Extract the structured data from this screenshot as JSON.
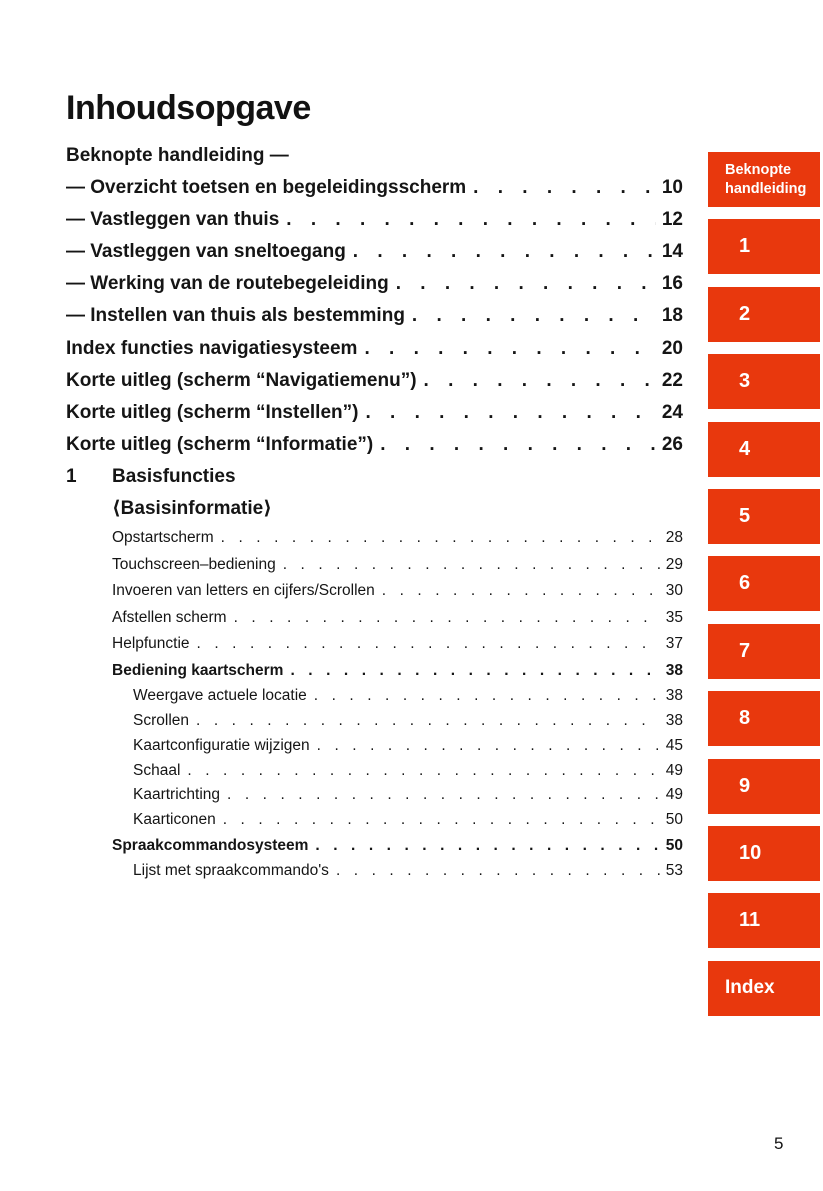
{
  "page": {
    "title": "Inhoudsopgave",
    "page_number": "5"
  },
  "colors": {
    "tab_background": "#e8380d",
    "tab_text": "#ffffff",
    "body_text": "#151515"
  },
  "toc": {
    "entries": [
      {
        "style": "s1",
        "label": "Beknopte handleiding —",
        "page": ""
      },
      {
        "style": "s1",
        "label": "— Overzicht toetsen en begeleidingsscherm",
        "page": "10"
      },
      {
        "style": "s1",
        "label": "— Vastleggen van thuis",
        "page": "12"
      },
      {
        "style": "s1",
        "label": "— Vastleggen van sneltoegang",
        "page": "14"
      },
      {
        "style": "s1",
        "label": "— Werking van de routebegeleiding",
        "page": "16"
      },
      {
        "style": "s1",
        "label": "— Instellen van thuis als bestemming",
        "page": "18"
      },
      {
        "style": "s1",
        "label": "Index functies navigatiesysteem",
        "page": "20"
      },
      {
        "style": "s1",
        "label": "Korte uitleg (scherm “Navigatiemenu”)",
        "page": "22"
      },
      {
        "style": "s1",
        "label": "Korte uitleg (scherm “Instellen”)",
        "page": "24"
      },
      {
        "style": "s1",
        "label": "Korte uitleg (scherm “Informatie”)",
        "page": "26"
      },
      {
        "style": "s1n",
        "num": "1",
        "label": "Basisfuncties",
        "page": ""
      },
      {
        "style": "s1i",
        "label": "⟨Basisinformatie⟩",
        "page": ""
      },
      {
        "style": "s2",
        "label": "Opstartscherm",
        "page": "28"
      },
      {
        "style": "s2",
        "label": "Touchscreen–bediening",
        "page": "29"
      },
      {
        "style": "s2",
        "label": "Invoeren van letters en cijfers/Scrollen",
        "page": "30"
      },
      {
        "style": "s2",
        "label": "Afstellen scherm",
        "page": "35"
      },
      {
        "style": "s2",
        "label": "Helpfunctie",
        "page": "37"
      },
      {
        "style": "s2b",
        "label": "Bediening kaartscherm",
        "page": "38"
      },
      {
        "style": "s3",
        "label": "Weergave actuele locatie",
        "page": "38"
      },
      {
        "style": "s3",
        "label": "Scrollen",
        "page": "38"
      },
      {
        "style": "s3",
        "label": "Kaartconfiguratie wijzigen",
        "page": "45"
      },
      {
        "style": "s3",
        "label": "Schaal",
        "page": "49"
      },
      {
        "style": "s3",
        "label": "Kaartrichting",
        "page": "49"
      },
      {
        "style": "s3",
        "label": "Kaarticonen",
        "page": "50"
      },
      {
        "style": "s2b",
        "label": "Spraakcommandosysteem",
        "page": "50"
      },
      {
        "style": "s3",
        "label": "Lijst met spraakcommando's",
        "page": "53"
      }
    ]
  },
  "tabs": [
    {
      "label": "Beknopte handleiding",
      "type": "text"
    },
    {
      "label": "1",
      "type": "num"
    },
    {
      "label": "2",
      "type": "num"
    },
    {
      "label": "3",
      "type": "num"
    },
    {
      "label": "4",
      "type": "num"
    },
    {
      "label": "5",
      "type": "num"
    },
    {
      "label": "6",
      "type": "num"
    },
    {
      "label": "7",
      "type": "num"
    },
    {
      "label": "8",
      "type": "num"
    },
    {
      "label": "9",
      "type": "num"
    },
    {
      "label": "10",
      "type": "num"
    },
    {
      "label": "11",
      "type": "num"
    },
    {
      "label": "Index",
      "type": "index"
    }
  ]
}
